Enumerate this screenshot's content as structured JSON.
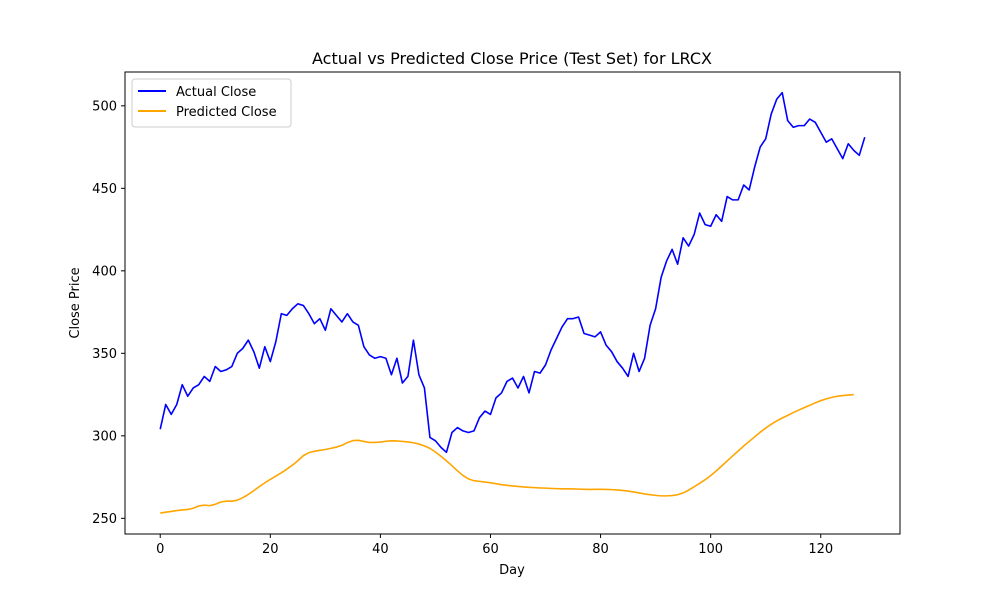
{
  "chart_data": {
    "type": "line",
    "title": "Actual vs Predicted Close Price (Test Set) for LRCX",
    "xlabel": "Day",
    "ylabel": "Close Price",
    "xlim": [
      -6.4,
      134.4
    ],
    "ylim": [
      240.5,
      520.5
    ],
    "x_ticks": [
      0,
      20,
      40,
      60,
      80,
      100,
      120
    ],
    "y_ticks": [
      250,
      300,
      350,
      400,
      450,
      500
    ],
    "grid": false,
    "legend_position": "upper-left",
    "colors": {
      "actual": "#0000ff",
      "predicted": "#ffa500"
    },
    "series": [
      {
        "name": "Actual Close",
        "color": "#0000ff",
        "values": [
          304,
          319,
          313,
          319,
          331,
          324,
          329,
          331,
          336,
          333,
          342,
          339,
          340,
          342,
          350,
          353,
          358,
          351,
          341,
          354,
          345,
          357,
          374,
          373,
          377,
          380,
          379,
          374,
          368,
          371,
          364,
          377,
          373,
          369,
          374,
          369,
          367,
          354,
          349,
          347,
          348,
          347,
          337,
          347,
          332,
          336,
          358,
          337,
          329,
          299,
          297,
          293,
          290,
          302,
          305,
          303,
          302,
          303,
          311,
          315,
          313,
          323,
          326,
          333,
          335,
          329,
          336,
          326,
          339,
          338,
          343,
          352,
          359,
          366,
          371,
          371,
          372,
          362,
          361,
          360,
          363,
          355,
          351,
          345,
          341,
          336,
          350,
          339,
          347,
          367,
          377,
          396,
          406,
          413,
          404,
          420,
          415,
          422,
          435,
          428,
          427,
          434,
          430,
          445,
          443,
          443,
          452,
          449,
          463,
          475,
          480,
          495,
          504,
          508,
          491,
          487,
          488,
          488,
          492,
          490,
          484,
          478,
          480,
          474,
          468,
          477,
          473,
          470,
          481
        ]
      },
      {
        "name": "Predicted Close",
        "color": "#ffa500",
        "values": [
          253.2,
          253.7,
          254.2,
          254.7,
          255.1,
          255.4,
          256.1,
          257.5,
          258.0,
          257.7,
          258.5,
          259.9,
          260.4,
          260.4,
          261.0,
          262.5,
          264.5,
          266.8,
          269.2,
          271.5,
          273.6,
          275.6,
          277.6,
          279.8,
          282.2,
          284.9,
          288.0,
          289.8,
          290.6,
          291.2,
          291.7,
          292.4,
          293.2,
          294.2,
          295.9,
          297.1,
          297.3,
          296.6,
          296.0,
          296.0,
          296.2,
          296.7,
          297.0,
          296.9,
          296.6,
          296.3,
          295.8,
          295.0,
          293.9,
          292.4,
          290.2,
          287.6,
          284.8,
          281.9,
          278.8,
          276.0,
          273.9,
          272.8,
          272.4,
          272.0,
          271.5,
          271.0,
          270.4,
          270.0,
          269.6,
          269.3,
          269.0,
          268.8,
          268.6,
          268.4,
          268.3,
          268.1,
          268.0,
          267.9,
          267.9,
          267.8,
          267.7,
          267.6,
          267.5,
          267.6,
          267.6,
          267.5,
          267.4,
          267.2,
          266.9,
          266.5,
          266.0,
          265.4,
          264.8,
          264.3,
          263.9,
          263.6,
          263.6,
          263.8,
          264.3,
          265.4,
          267.1,
          269.1,
          271.2,
          273.4,
          275.9,
          278.7,
          281.7,
          284.8,
          287.8,
          290.8,
          293.8,
          296.6,
          299.4,
          302.2,
          304.7,
          307.0,
          309.0,
          310.8,
          312.4,
          314.1,
          315.6,
          317.1,
          318.5,
          320.0,
          321.3,
          322.4,
          323.3,
          324.0,
          324.4,
          324.7,
          325.0
        ]
      }
    ]
  }
}
